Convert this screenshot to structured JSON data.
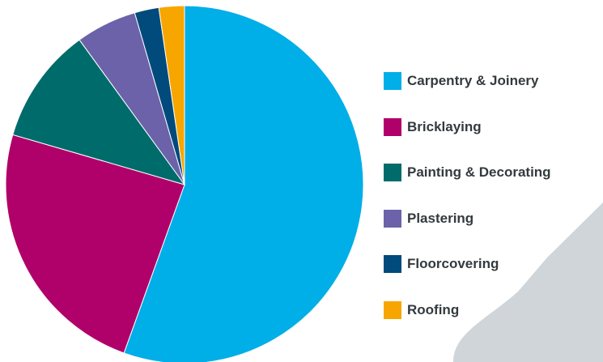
{
  "chart_data": {
    "type": "pie",
    "title": "",
    "series": [
      {
        "name": "Carpentry & Joinery",
        "value": 55.5,
        "color": "#00aee8"
      },
      {
        "name": "Bricklaying",
        "value": 24.0,
        "color": "#b0006a"
      },
      {
        "name": "Painting & Decorating",
        "value": 10.5,
        "color": "#006b6b"
      },
      {
        "name": "Plastering",
        "value": 5.5,
        "color": "#6b62aa"
      },
      {
        "name": "Floorcovering",
        "value": 2.2,
        "color": "#004a7c"
      },
      {
        "name": "Roofing",
        "value": 2.3,
        "color": "#f7a600"
      }
    ],
    "legend_position": "right",
    "start_angle": "top, clockwise"
  },
  "background_shape_color": "#d0d5d9"
}
